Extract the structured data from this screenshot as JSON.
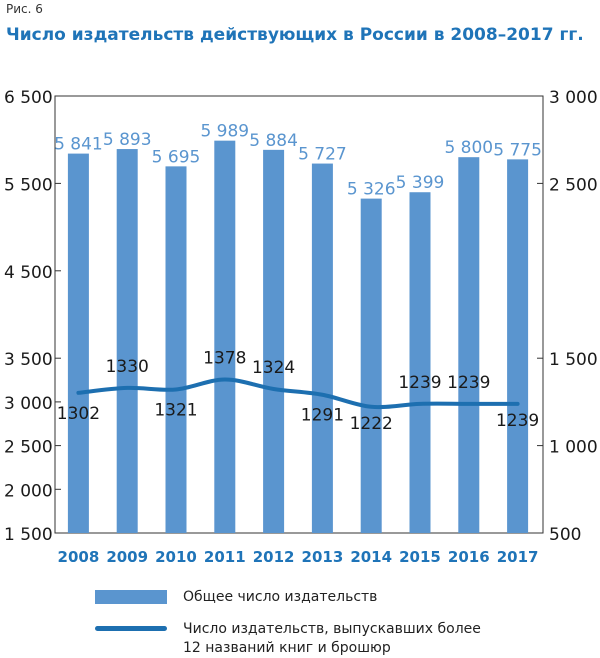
{
  "figure_label": "Рис. 6",
  "title": "Число издательств действующих в России в 2008–2017 гг.",
  "legend": {
    "bars_label": "Общее число издательств",
    "line_label_1": "Число издательств, выпускавших более",
    "line_label_2": "12 названий книг и брошюр"
  },
  "colors": {
    "bar": "#5a95cf",
    "line": "#1d6fb0",
    "accent": "#1f74b8",
    "bar_label": "#5a95cf"
  },
  "chart_data": {
    "type": "bar",
    "categories": [
      "2008",
      "2009",
      "2010",
      "2011",
      "2012",
      "2013",
      "2014",
      "2015",
      "2016",
      "2017"
    ],
    "series": [
      {
        "name": "Общее число издательств",
        "type": "bar",
        "axis": "left",
        "values": [
          5841,
          5893,
          5695,
          5989,
          5884,
          5727,
          5326,
          5399,
          5800,
          5775
        ],
        "labels": [
          "5 841",
          "5 893",
          "5 695",
          "5 989",
          "5 884",
          "5 727",
          "5 326",
          "5 399",
          "5 800",
          "5 775"
        ]
      },
      {
        "name": "Число издательств, выпускавших более 12 названий книг и брошюр",
        "type": "line",
        "axis": "right",
        "values": [
          1302,
          1330,
          1321,
          1378,
          1324,
          1291,
          1222,
          1239,
          1239,
          1239
        ],
        "labels": [
          "1302",
          "1330",
          "1321",
          "1378",
          "1324",
          "1291",
          "1222",
          "1239",
          "1239",
          "1239"
        ]
      }
    ],
    "left_axis": {
      "ylim": [
        1500,
        6500
      ],
      "ticks": [
        6500,
        5500,
        4500,
        3500,
        3000,
        2500,
        2000,
        1500
      ],
      "tick_labels": [
        "6 500",
        "5 500",
        "4 500",
        "3 500",
        "3 000",
        "2 500",
        "2 000",
        "1 500"
      ]
    },
    "right_axis": {
      "ylim": [
        500,
        3000
      ],
      "ticks": [
        3000,
        2500,
        1500,
        1000,
        500
      ],
      "tick_labels": [
        "3 000",
        "2 500",
        "1 500",
        "1 000",
        "500"
      ]
    },
    "grid": false,
    "legend_position": "bottom"
  }
}
